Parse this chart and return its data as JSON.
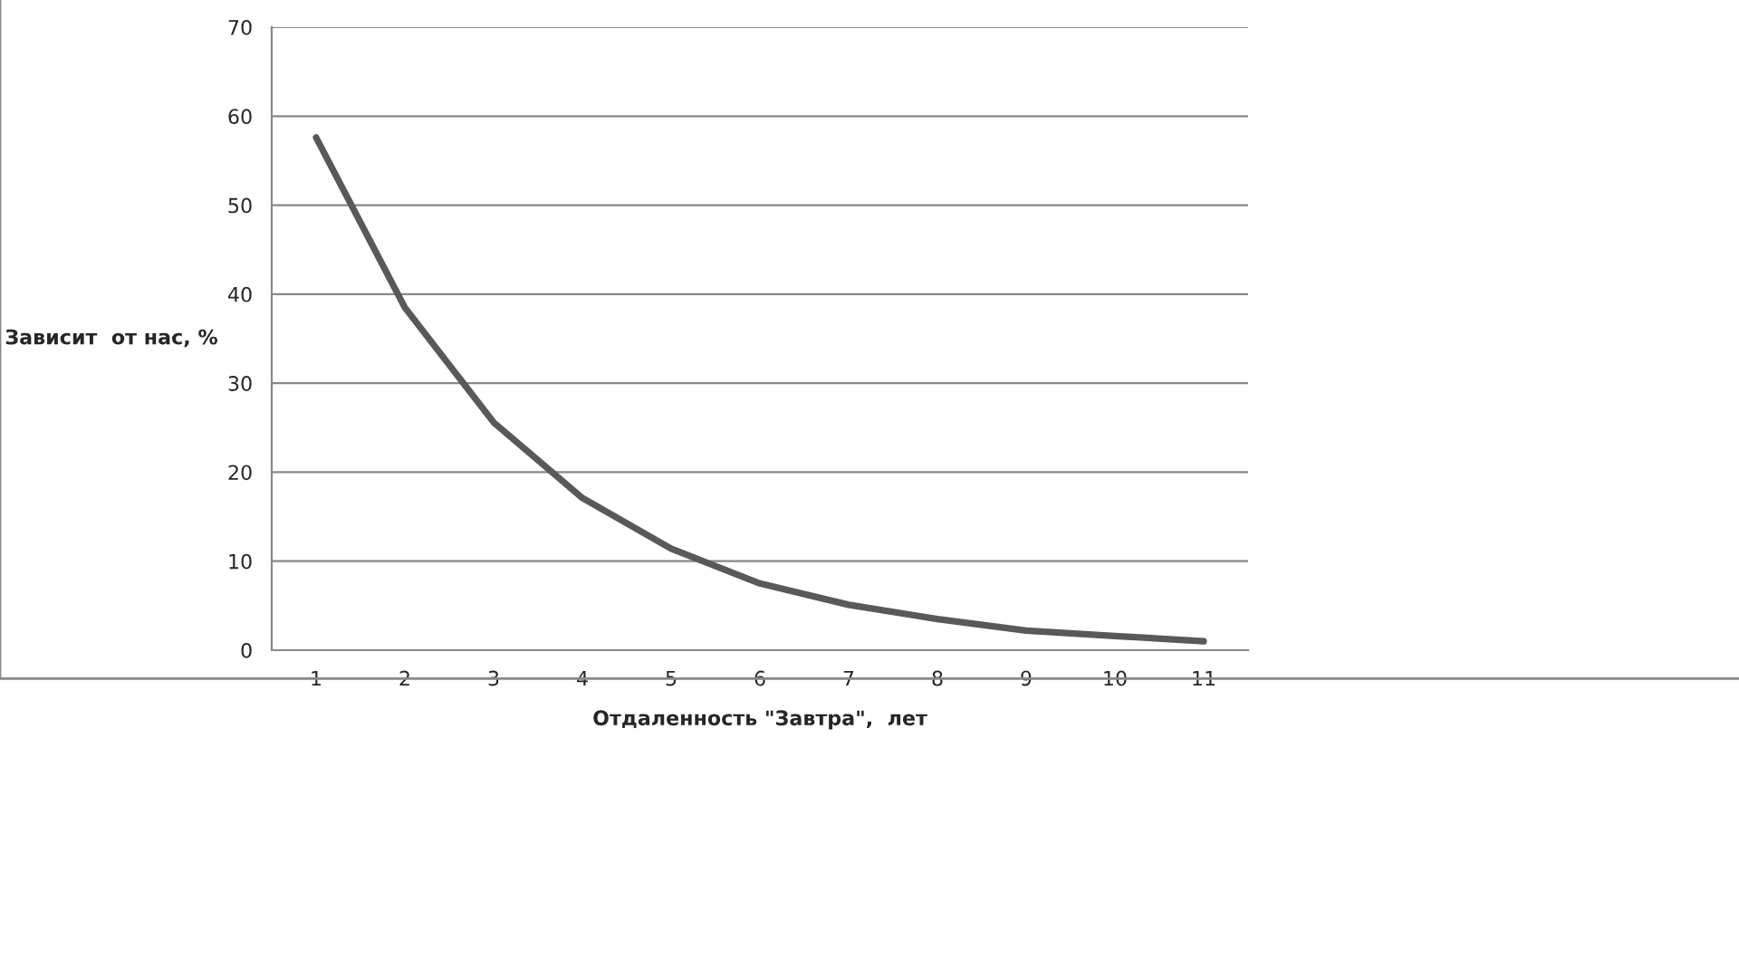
{
  "chart_data": {
    "type": "line",
    "categories": [
      "1",
      "2",
      "3",
      "4",
      "5",
      "6",
      "7",
      "8",
      "9",
      "10",
      "11"
    ],
    "series": [
      {
        "color": "#595959",
        "values": [
          57.6,
          38.5,
          25.6,
          17.1,
          11.4,
          7.5,
          5.1,
          3.5,
          2.2,
          1.6,
          1.0
        ]
      }
    ],
    "xlabel": "Отдаленность \"Завтра\",  лет",
    "ylabel": "Зависит  от нас, %",
    "ylim": [
      0,
      70
    ],
    "yticks": [
      0,
      10,
      20,
      30,
      40,
      50,
      60,
      70
    ],
    "grid": "y",
    "legend": false,
    "marker": "none",
    "line_style": "solid"
  }
}
